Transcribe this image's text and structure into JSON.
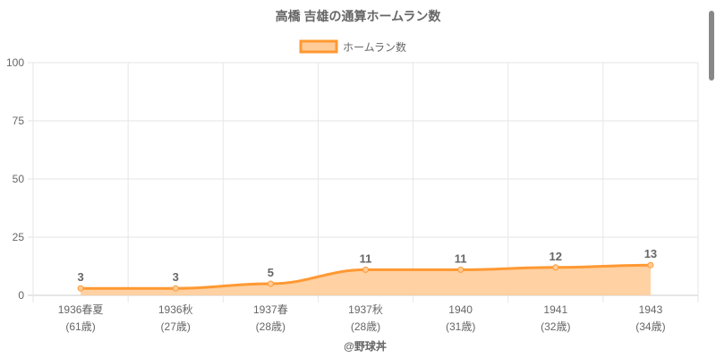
{
  "chart_data": {
    "type": "line",
    "title": "高橋 吉雄の通算ホームラン数",
    "categories": [
      "1936春夏",
      "1936秋",
      "1937春",
      "1937秋",
      "1940",
      "1941",
      "1943"
    ],
    "sublabels": [
      "(61歳)",
      "(27歳)",
      "(28歳)",
      "(28歳)",
      "(31歳)",
      "(32歳)",
      "(34歳)"
    ],
    "series": [
      {
        "name": "ホームラン数",
        "values": [
          3,
          3,
          5,
          11,
          11,
          12,
          13
        ]
      }
    ],
    "ylim": [
      0,
      100
    ],
    "yticks": [
      0,
      25,
      50,
      75,
      100
    ],
    "grid": true,
    "legend": "top-center",
    "xlabel": "@野球丼",
    "ylabel": "",
    "colors": {
      "line": "#ff9933",
      "fill": "#ffcc99",
      "grid": "#e6e6e6",
      "text": "#666666"
    }
  }
}
